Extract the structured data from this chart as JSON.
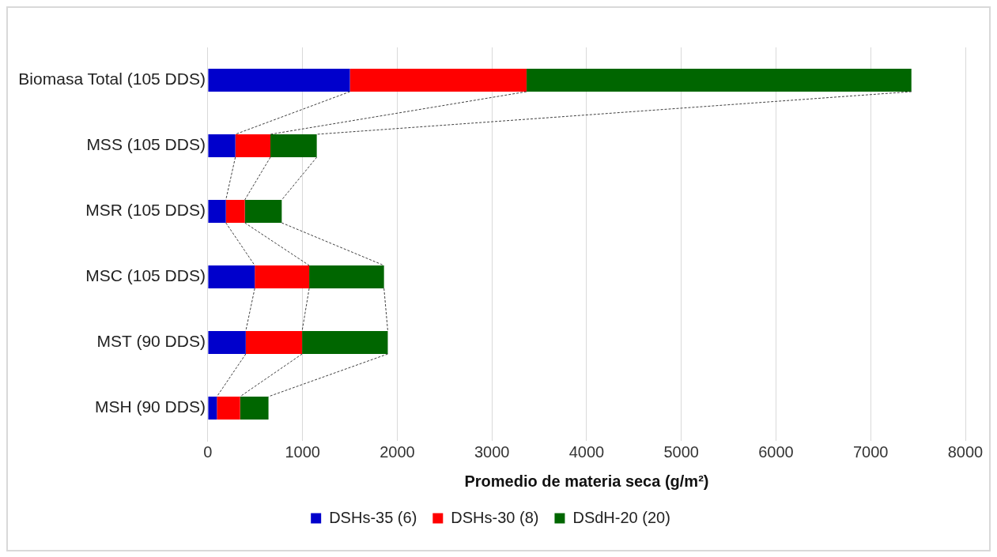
{
  "chart_data": {
    "type": "bar",
    "orientation": "horizontal",
    "stacked": true,
    "categories": [
      "Biomasa Total (105 DDS)",
      "MSS (105 DDS)",
      "MSR (105 DDS)",
      "MSC (105 DDS)",
      "MST (90 DDS)",
      "MSH (90 DDS)"
    ],
    "series": [
      {
        "name": "DSHs-35 (6)",
        "color": "#0000cc",
        "values": [
          1500,
          290,
          190,
          495,
          400,
          95
        ]
      },
      {
        "name": "DSHs-30 (8)",
        "color": "#ff0000",
        "values": [
          1865,
          370,
          200,
          575,
          595,
          245
        ]
      },
      {
        "name": "DSdH-20 (20)",
        "color": "#006600",
        "values": [
          4065,
          490,
          390,
          790,
          905,
          300
        ]
      }
    ],
    "xlabel": "Promedio de materia seca (g/m²)",
    "xlim": [
      0,
      8000
    ],
    "xticks": [
      0,
      1000,
      2000,
      3000,
      4000,
      5000,
      6000,
      7000,
      8000
    ],
    "grid": "x",
    "legend": "bottom"
  }
}
